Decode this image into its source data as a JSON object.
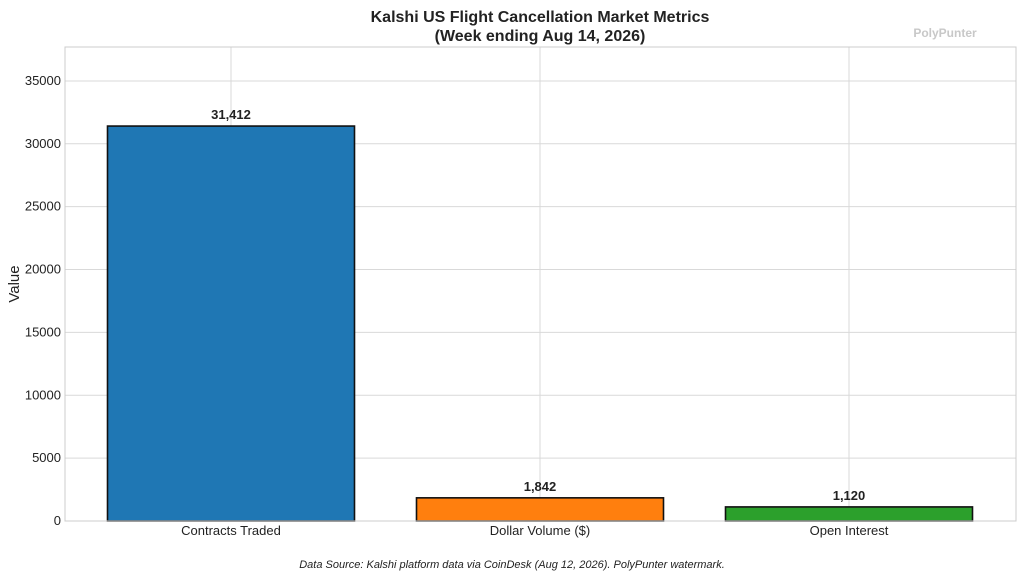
{
  "chart_data": {
    "type": "bar",
    "title_lines": [
      "Kalshi US Flight Cancellation Market Metrics",
      "(Week ending Aug 14, 2026)"
    ],
    "watermark": "PolyPunter",
    "xlabel": "",
    "ylabel": "Value",
    "categories": [
      "Contracts Traded",
      "Dollar Volume ($)",
      "Open Interest"
    ],
    "values": [
      31412,
      1842,
      1120
    ],
    "value_labels": [
      "31,412",
      "1,842",
      "1,120"
    ],
    "colors": [
      "#1f77b4",
      "#ff7f0e",
      "#2ca02c"
    ],
    "ylim": [
      0,
      37700
    ],
    "yticks": [
      0,
      5000,
      10000,
      15000,
      20000,
      25000,
      30000,
      35000
    ],
    "grid": true,
    "source_note": "Data Source: Kalshi platform data via CoinDesk (Aug 12, 2026). PolyPunter watermark."
  }
}
